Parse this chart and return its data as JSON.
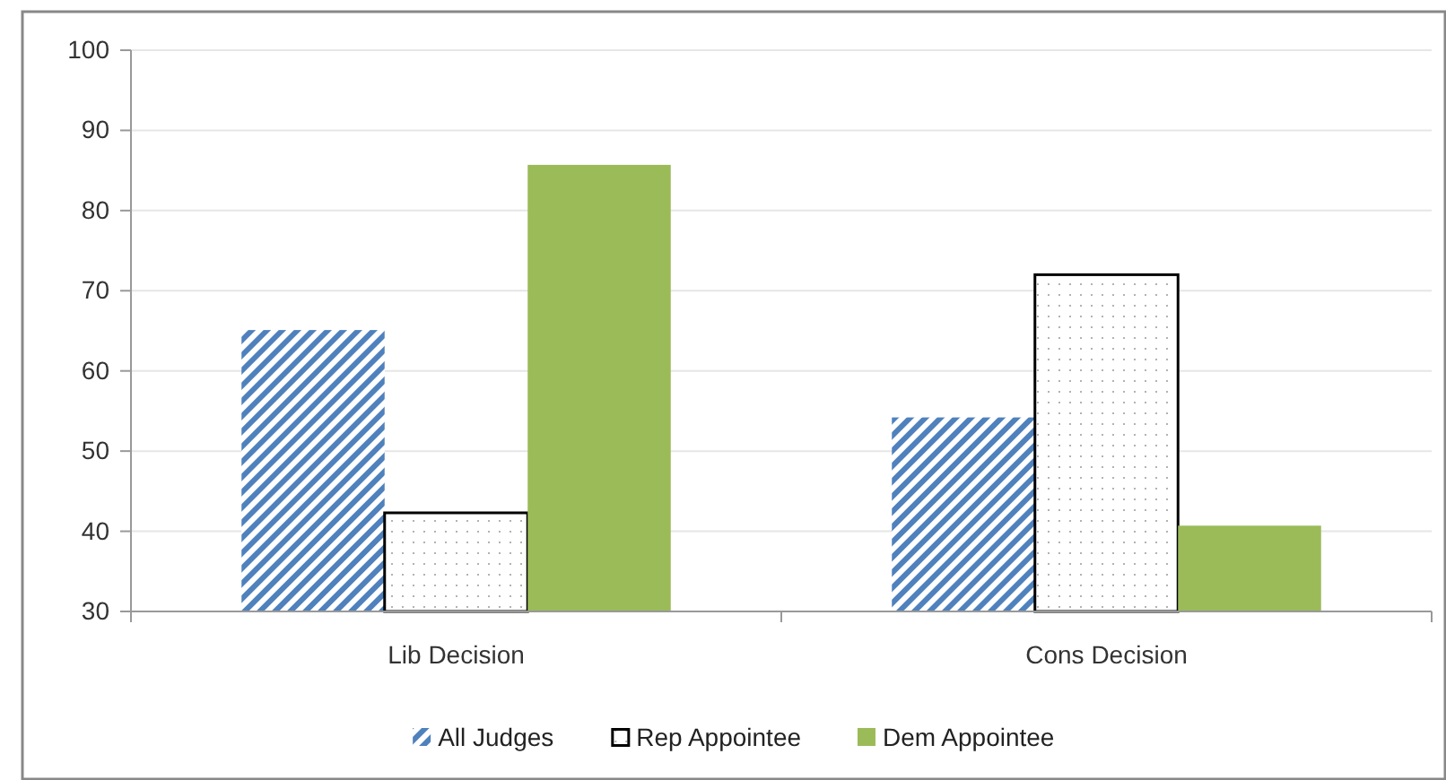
{
  "chart_data": {
    "type": "bar",
    "categories": [
      "Lib Decision",
      "Cons Decision"
    ],
    "series": [
      {
        "name": "All Judges",
        "color": "#4f81bd",
        "values": [
          65.1,
          54.2
        ]
      },
      {
        "name": "Rep Appointee",
        "color": "#000000",
        "values": [
          42.3,
          72
        ]
      },
      {
        "name": "Dem Appointee",
        "color": "#9bbb59",
        "values": [
          85.7,
          40.7
        ]
      }
    ],
    "ylim": [
      30,
      100
    ],
    "yticks": [
      30,
      40,
      50,
      60,
      70,
      80,
      90,
      100
    ],
    "grid": "y",
    "legend": "bottom"
  }
}
